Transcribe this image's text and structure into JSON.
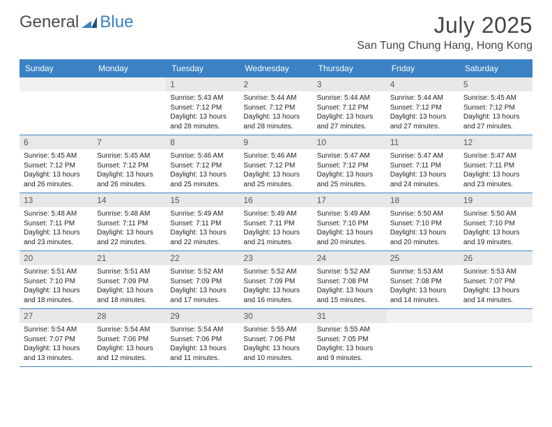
{
  "logo": {
    "text1": "General",
    "text2": "Blue"
  },
  "title": "July 2025",
  "location": "San Tung Chung Hang, Hong Kong",
  "colors": {
    "header_bg": "#3b82c4",
    "header_text": "#ffffff",
    "date_bar_bg": "#e8e8e8",
    "week_divider": "#3b82c4",
    "page_bg": "#ffffff"
  },
  "dayNames": [
    "Sunday",
    "Monday",
    "Tuesday",
    "Wednesday",
    "Thursday",
    "Friday",
    "Saturday"
  ],
  "leadingBlanks": 2,
  "days": [
    {
      "n": 1,
      "sunrise": "5:43 AM",
      "sunset": "7:12 PM",
      "daylight": "13 hours and 28 minutes."
    },
    {
      "n": 2,
      "sunrise": "5:44 AM",
      "sunset": "7:12 PM",
      "daylight": "13 hours and 28 minutes."
    },
    {
      "n": 3,
      "sunrise": "5:44 AM",
      "sunset": "7:12 PM",
      "daylight": "13 hours and 27 minutes."
    },
    {
      "n": 4,
      "sunrise": "5:44 AM",
      "sunset": "7:12 PM",
      "daylight": "13 hours and 27 minutes."
    },
    {
      "n": 5,
      "sunrise": "5:45 AM",
      "sunset": "7:12 PM",
      "daylight": "13 hours and 27 minutes."
    },
    {
      "n": 6,
      "sunrise": "5:45 AM",
      "sunset": "7:12 PM",
      "daylight": "13 hours and 26 minutes."
    },
    {
      "n": 7,
      "sunrise": "5:45 AM",
      "sunset": "7:12 PM",
      "daylight": "13 hours and 26 minutes."
    },
    {
      "n": 8,
      "sunrise": "5:46 AM",
      "sunset": "7:12 PM",
      "daylight": "13 hours and 25 minutes."
    },
    {
      "n": 9,
      "sunrise": "5:46 AM",
      "sunset": "7:12 PM",
      "daylight": "13 hours and 25 minutes."
    },
    {
      "n": 10,
      "sunrise": "5:47 AM",
      "sunset": "7:12 PM",
      "daylight": "13 hours and 25 minutes."
    },
    {
      "n": 11,
      "sunrise": "5:47 AM",
      "sunset": "7:11 PM",
      "daylight": "13 hours and 24 minutes."
    },
    {
      "n": 12,
      "sunrise": "5:47 AM",
      "sunset": "7:11 PM",
      "daylight": "13 hours and 23 minutes."
    },
    {
      "n": 13,
      "sunrise": "5:48 AM",
      "sunset": "7:11 PM",
      "daylight": "13 hours and 23 minutes."
    },
    {
      "n": 14,
      "sunrise": "5:48 AM",
      "sunset": "7:11 PM",
      "daylight": "13 hours and 22 minutes."
    },
    {
      "n": 15,
      "sunrise": "5:49 AM",
      "sunset": "7:11 PM",
      "daylight": "13 hours and 22 minutes."
    },
    {
      "n": 16,
      "sunrise": "5:49 AM",
      "sunset": "7:11 PM",
      "daylight": "13 hours and 21 minutes."
    },
    {
      "n": 17,
      "sunrise": "5:49 AM",
      "sunset": "7:10 PM",
      "daylight": "13 hours and 20 minutes."
    },
    {
      "n": 18,
      "sunrise": "5:50 AM",
      "sunset": "7:10 PM",
      "daylight": "13 hours and 20 minutes."
    },
    {
      "n": 19,
      "sunrise": "5:50 AM",
      "sunset": "7:10 PM",
      "daylight": "13 hours and 19 minutes."
    },
    {
      "n": 20,
      "sunrise": "5:51 AM",
      "sunset": "7:10 PM",
      "daylight": "13 hours and 18 minutes."
    },
    {
      "n": 21,
      "sunrise": "5:51 AM",
      "sunset": "7:09 PM",
      "daylight": "13 hours and 18 minutes."
    },
    {
      "n": 22,
      "sunrise": "5:52 AM",
      "sunset": "7:09 PM",
      "daylight": "13 hours and 17 minutes."
    },
    {
      "n": 23,
      "sunrise": "5:52 AM",
      "sunset": "7:09 PM",
      "daylight": "13 hours and 16 minutes."
    },
    {
      "n": 24,
      "sunrise": "5:52 AM",
      "sunset": "7:08 PM",
      "daylight": "13 hours and 15 minutes."
    },
    {
      "n": 25,
      "sunrise": "5:53 AM",
      "sunset": "7:08 PM",
      "daylight": "13 hours and 14 minutes."
    },
    {
      "n": 26,
      "sunrise": "5:53 AM",
      "sunset": "7:07 PM",
      "daylight": "13 hours and 14 minutes."
    },
    {
      "n": 27,
      "sunrise": "5:54 AM",
      "sunset": "7:07 PM",
      "daylight": "13 hours and 13 minutes."
    },
    {
      "n": 28,
      "sunrise": "5:54 AM",
      "sunset": "7:06 PM",
      "daylight": "13 hours and 12 minutes."
    },
    {
      "n": 29,
      "sunrise": "5:54 AM",
      "sunset": "7:06 PM",
      "daylight": "13 hours and 11 minutes."
    },
    {
      "n": 30,
      "sunrise": "5:55 AM",
      "sunset": "7:06 PM",
      "daylight": "13 hours and 10 minutes."
    },
    {
      "n": 31,
      "sunrise": "5:55 AM",
      "sunset": "7:05 PM",
      "daylight": "13 hours and 9 minutes."
    }
  ],
  "labels": {
    "sunrise": "Sunrise:",
    "sunset": "Sunset:",
    "daylight": "Daylight:"
  }
}
